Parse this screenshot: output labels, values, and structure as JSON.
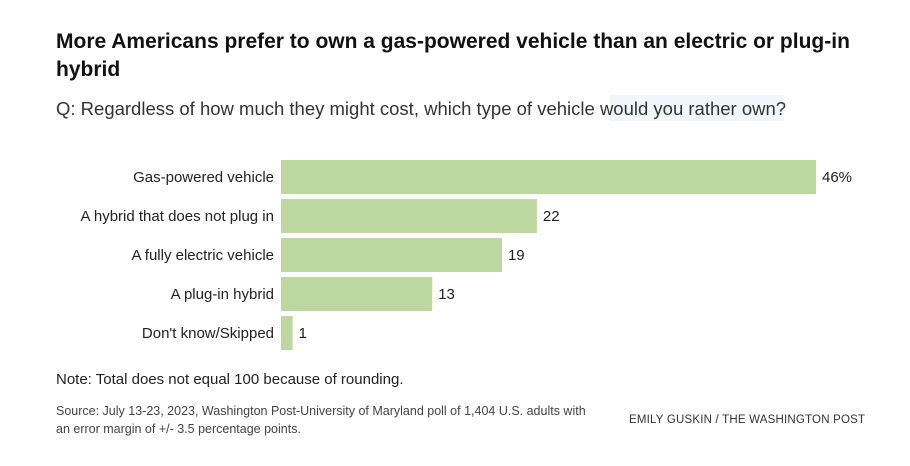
{
  "header": {
    "title": "More Americans prefer to own a gas-powered vehicle than an electric or plug-in hybrid",
    "subtitle": "Q: Regardless of how much they might cost, which type of vehicle would you rather own?"
  },
  "colors": {
    "bar": "#bcd79f",
    "label_text": "#222222"
  },
  "chart_data": {
    "type": "bar",
    "orientation": "horizontal",
    "categories": [
      "Gas-powered vehicle",
      "A hybrid that does not plug in",
      "A fully electric vehicle",
      "A plug-in hybrid",
      "Don't know/Skipped"
    ],
    "values": [
      46,
      22,
      19,
      13,
      1
    ],
    "value_labels": [
      "46%",
      "22",
      "19",
      "13",
      "1"
    ],
    "xlim": [
      0,
      46
    ],
    "grid": false,
    "legend": "none"
  },
  "footer": {
    "note": "Note: Total does not equal 100 because of rounding.",
    "source": "Source: July 13-23, 2023, Washington Post-University of Maryland poll of 1,404 U.S. adults with an error margin of +/- 3.5 percentage points.",
    "credit": "EMILY GUSKIN / THE WASHINGTON POST"
  }
}
